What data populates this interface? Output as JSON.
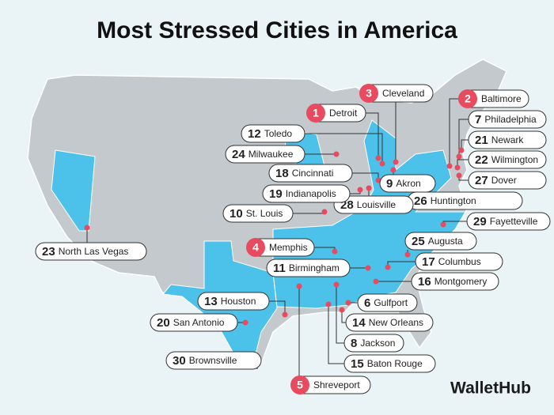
{
  "title": "Most Stressed Cities in America",
  "cities": [
    {
      "rank": 1,
      "name": "Detroit"
    },
    {
      "rank": 3,
      "name": "Cleveland"
    },
    {
      "rank": 2,
      "name": "Baltimore"
    },
    {
      "rank": 7,
      "name": "Philadelphia"
    },
    {
      "rank": 21,
      "name": "Newark"
    },
    {
      "rank": 22,
      "name": "Wilmington"
    },
    {
      "rank": 27,
      "name": "Dover"
    },
    {
      "rank": 26,
      "name": "Huntington"
    },
    {
      "rank": 29,
      "name": "Fayetteville"
    },
    {
      "rank": 25,
      "name": "Augusta"
    },
    {
      "rank": 17,
      "name": "Columbus"
    },
    {
      "rank": 16,
      "name": "Montgomery"
    },
    {
      "rank": 6,
      "name": "Gulfport"
    },
    {
      "rank": 14,
      "name": "New Orleans"
    },
    {
      "rank": 8,
      "name": "Jackson"
    },
    {
      "rank": 15,
      "name": "Baton Rouge"
    },
    {
      "rank": 5,
      "name": "Shreveport"
    },
    {
      "rank": 30,
      "name": "Brownsville"
    },
    {
      "rank": 20,
      "name": "San Antonio"
    },
    {
      "rank": 13,
      "name": "Houston"
    },
    {
      "rank": 11,
      "name": "Birmingham"
    },
    {
      "rank": 4,
      "name": "Memphis"
    },
    {
      "rank": 28,
      "name": "Louisville"
    },
    {
      "rank": 10,
      "name": "St. Louis"
    },
    {
      "rank": 19,
      "name": "Indianapolis"
    },
    {
      "rank": 18,
      "name": "Cincinnati"
    },
    {
      "rank": 24,
      "name": "Milwaukee"
    },
    {
      "rank": 12,
      "name": "Toledo"
    },
    {
      "rank": 9,
      "name": "Akron"
    },
    {
      "rank": 23,
      "name": "North Las Vegas"
    }
  ],
  "logo": "WalletHub"
}
